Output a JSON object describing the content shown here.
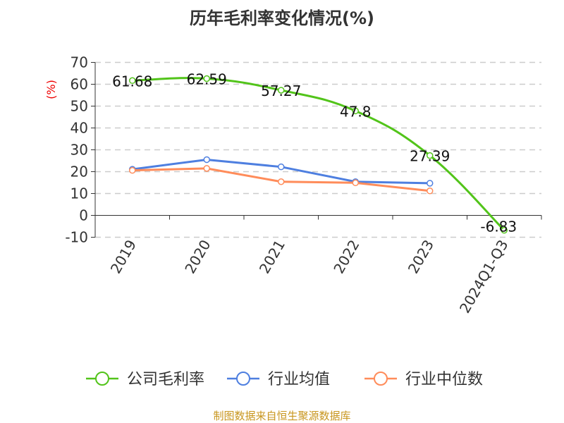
{
  "chart_data": {
    "type": "line",
    "title": "历年毛利率变化情况(%)",
    "ylabel": "(%)",
    "categories": [
      "2019",
      "2020",
      "2021",
      "2022",
      "2023",
      "2024Q1-Q3"
    ],
    "ylim": [
      -10,
      70
    ],
    "yticks": [
      -10,
      0,
      10,
      20,
      30,
      40,
      50,
      60,
      70
    ],
    "grid": true,
    "legend_position": "bottom",
    "series": [
      {
        "name": "公司毛利率",
        "color": "#52c41a",
        "values": [
          61.68,
          62.59,
          57.27,
          47.8,
          27.39,
          -6.83
        ],
        "labels": [
          "61.68",
          "62.59",
          "57.27",
          "47.8",
          "27.39",
          "-6.83"
        ],
        "smooth": true
      },
      {
        "name": "行业均值",
        "color": "#4e7fe0",
        "values": [
          21.1,
          25.5,
          22.2,
          15.4,
          14.7,
          null
        ]
      },
      {
        "name": "行业中位数",
        "color": "#ff8c5a",
        "values": [
          20.6,
          21.5,
          15.4,
          14.9,
          11.2,
          null
        ]
      }
    ]
  },
  "source": "制图数据来自恒生聚源数据库"
}
